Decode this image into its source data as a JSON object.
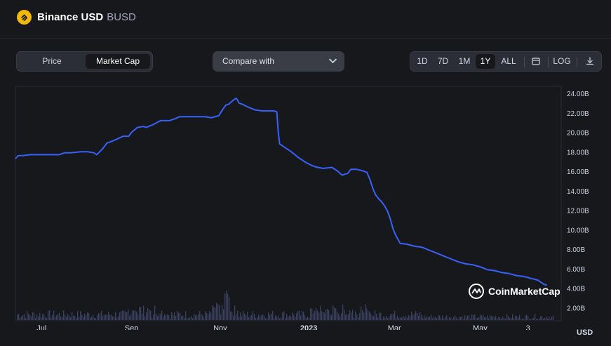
{
  "header": {
    "name": "Binance USD",
    "symbol": "BUSD",
    "icon": "busd-coin-icon"
  },
  "tabs": {
    "price": "Price",
    "market_cap": "Market Cap",
    "active": "Market Cap"
  },
  "compare": {
    "label": "Compare with",
    "icon": "chevron-down-icon"
  },
  "ranges": [
    "1D",
    "7D",
    "1M",
    "1Y",
    "ALL"
  ],
  "active_range": "1Y",
  "tools": {
    "calendar_icon": "calendar-icon",
    "log_label": "LOG",
    "download_icon": "download-icon"
  },
  "currency": "USD",
  "watermark": "CoinMarketCap",
  "colors": {
    "line": "#3861fb",
    "volume": "#3a4264",
    "accent": "#f0b90b"
  },
  "chart_data": {
    "type": "line",
    "y_unit": "B USD",
    "ylim": [
      0,
      25
    ],
    "yticks": [
      2,
      4,
      6,
      8,
      10,
      12,
      14,
      16,
      18,
      20,
      22,
      24
    ],
    "ytick_labels": [
      "2.00B",
      "4.00B",
      "6.00B",
      "8.00B",
      "10.00B",
      "12.00B",
      "14.00B",
      "16.00B",
      "18.00B",
      "20.00B",
      "22.00B",
      "24.00B"
    ],
    "x_tick_labels": [
      "Jul",
      "Sep",
      "Nov",
      "2023",
      "Mar",
      "May",
      "3"
    ],
    "x_tick_days": [
      18,
      80,
      141,
      202,
      261,
      320,
      353
    ],
    "xlim": [
      0,
      372
    ],
    "grid": false,
    "series": [
      {
        "x": [
          0,
          2,
          5,
          10,
          20,
          30,
          34,
          38,
          45,
          50,
          54,
          56,
          60,
          63,
          65,
          70,
          74,
          78,
          80,
          84,
          88,
          90,
          95,
          100,
          102,
          106,
          110,
          113,
          117,
          120,
          125,
          130,
          135,
          140,
          143,
          145,
          147,
          150,
          152,
          153,
          154,
          156,
          160,
          165,
          170,
          175,
          178,
          180,
          181,
          182,
          185,
          190,
          195,
          200,
          204,
          208,
          212,
          218,
          222,
          225,
          229,
          231,
          233,
          235,
          238,
          242,
          244,
          246,
          248,
          250,
          252,
          254,
          256,
          258,
          260,
          262,
          265,
          270,
          275,
          280,
          285,
          290,
          295,
          300,
          305,
          310,
          315,
          320,
          325,
          330,
          335,
          340,
          345,
          350,
          355,
          358,
          360,
          362,
          364,
          366
        ],
        "y": [
          17.3,
          17.6,
          17.6,
          17.7,
          17.7,
          17.7,
          17.9,
          17.9,
          18.0,
          18.0,
          17.9,
          17.7,
          18.3,
          18.9,
          19.0,
          19.3,
          19.6,
          19.6,
          20.0,
          20.5,
          20.6,
          20.5,
          20.8,
          21.2,
          21.2,
          21.2,
          21.4,
          21.6,
          21.6,
          21.6,
          21.6,
          21.6,
          21.5,
          21.7,
          22.4,
          22.8,
          22.9,
          23.3,
          23.5,
          23.3,
          23.0,
          22.9,
          22.6,
          22.3,
          22.2,
          22.2,
          22.2,
          22.1,
          20.0,
          18.8,
          18.5,
          18.0,
          17.4,
          16.9,
          16.6,
          16.4,
          16.3,
          16.4,
          16.0,
          15.6,
          15.8,
          16.2,
          16.2,
          16.2,
          16.1,
          15.9,
          15.2,
          14.3,
          13.6,
          13.2,
          12.9,
          12.5,
          12.0,
          11.2,
          10.1,
          9.4,
          8.6,
          8.5,
          8.3,
          8.2,
          7.9,
          7.6,
          7.3,
          7.0,
          6.7,
          6.5,
          6.4,
          6.2,
          5.9,
          5.8,
          5.6,
          5.5,
          5.3,
          5.2,
          5.0,
          4.9,
          4.8,
          4.6,
          4.4,
          4.3
        ]
      }
    ]
  }
}
